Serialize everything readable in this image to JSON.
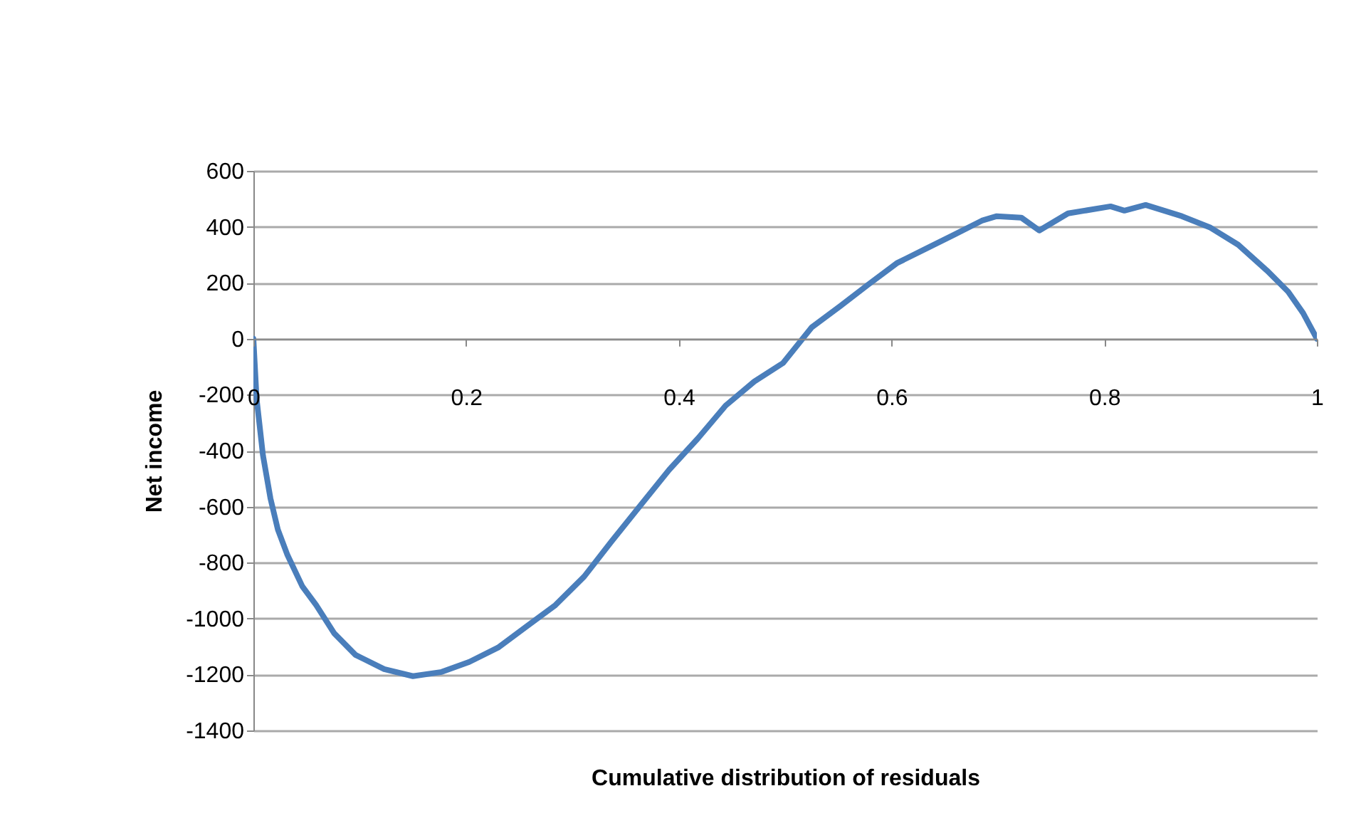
{
  "chart_data": {
    "type": "line",
    "xlabel": "Cumulative distribution of residuals",
    "ylabel": "Net income",
    "x": [
      0,
      0.003,
      0.009,
      0.016,
      0.023,
      0.032,
      0.046,
      0.059,
      0.076,
      0.096,
      0.123,
      0.15,
      0.177,
      0.203,
      0.23,
      0.257,
      0.284,
      0.311,
      0.337,
      0.364,
      0.391,
      0.418,
      0.444,
      0.471,
      0.498,
      0.525,
      0.552,
      0.578,
      0.605,
      0.632,
      0.659,
      0.685,
      0.699,
      0.722,
      0.739,
      0.766,
      0.806,
      0.819,
      0.839,
      0.873,
      0.9,
      0.926,
      0.953,
      0.973,
      0.987,
      1
    ],
    "series": [
      {
        "color": "#4a7ebb",
        "values": [
          0,
          -214,
          -417,
          -570,
          -682,
          -773,
          -885,
          -952,
          -1053,
          -1130,
          -1181,
          -1206,
          -1191,
          -1155,
          -1104,
          -1028,
          -952,
          -850,
          -723,
          -595,
          -468,
          -356,
          -239,
          -153,
          -87,
          41,
          117,
          193,
          270,
          321,
          372,
          422,
          438,
          433,
          387,
          448,
          473,
          458,
          478,
          438,
          397,
          336,
          244,
          168,
          92,
          0
        ]
      }
    ],
    "xlim": [
      0,
      1
    ],
    "xticks": [
      0,
      0.2,
      0.4,
      0.6,
      0.8,
      1
    ],
    "ylim": [
      -1400,
      600
    ],
    "yticks": [
      -1400,
      -1200,
      -1000,
      -800,
      -600,
      -400,
      -200,
      0,
      200,
      400,
      600
    ],
    "grid": "y",
    "legend": false,
    "marker": "none",
    "line_style": "solid"
  }
}
